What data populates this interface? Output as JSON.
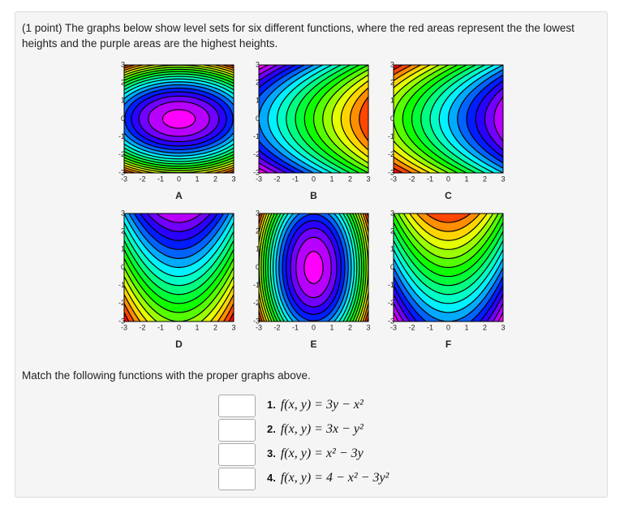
{
  "intro": "(1 point) The graphs below show level sets for six different functions, where the red areas represent the the lowest heights and the purple areas are the highest heights.",
  "axis_ticks": [
    -3,
    -2,
    -1,
    0,
    1,
    2,
    3
  ],
  "plots": [
    "A",
    "B",
    "C",
    "D",
    "E",
    "F"
  ],
  "instruction": "Match the following functions with the proper graphs above.",
  "items": [
    {
      "number": "1.",
      "formula": "f(x, y) = 3y − x²"
    },
    {
      "number": "2.",
      "formula": "f(x, y) = 3x − y²"
    },
    {
      "number": "3.",
      "formula": "f(x, y) = x² − 3y"
    },
    {
      "number": "4.",
      "formula": "f(x, y) = 4 − x² − 3y²"
    }
  ]
}
